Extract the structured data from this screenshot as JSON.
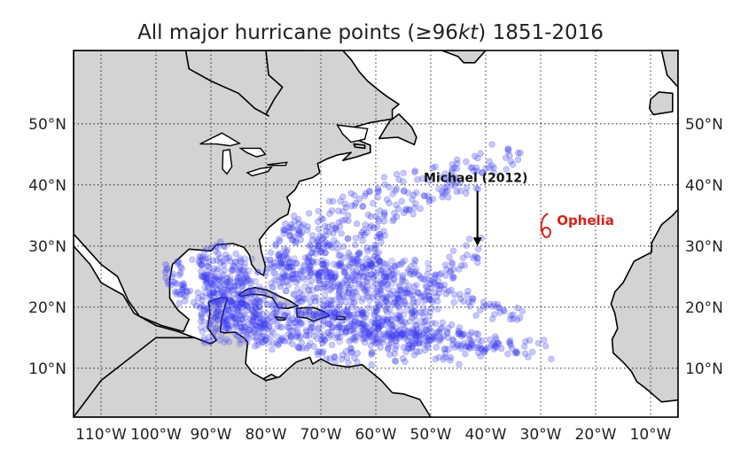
{
  "title": {
    "prefix": "All major hurricane points (",
    "symbol": "≥",
    "value": "96",
    "unit": "kt",
    "suffix": ") 1851-2016"
  },
  "map": {
    "extent": {
      "lon": [
        -115,
        -5
      ],
      "lat": [
        2,
        62
      ]
    },
    "land_color": "#d3d3d3",
    "ocean_color": "#ffffff",
    "coastline_color": "#000000",
    "point_color": "#3a3af0",
    "grid": "dotted",
    "lon_ticks": [
      {
        "lon": -110,
        "label": "110°W"
      },
      {
        "lon": -100,
        "label": "100°W"
      },
      {
        "lon": -90,
        "label": "90°W"
      },
      {
        "lon": -80,
        "label": "80°W"
      },
      {
        "lon": -70,
        "label": "70°W"
      },
      {
        "lon": -60,
        "label": "60°W"
      },
      {
        "lon": -50,
        "label": "50°W"
      },
      {
        "lon": -40,
        "label": "40°W"
      },
      {
        "lon": -30,
        "label": "30°W"
      },
      {
        "lon": -20,
        "label": "20°W"
      },
      {
        "lon": -10,
        "label": "10°W"
      }
    ],
    "lat_ticks": [
      {
        "lat": 10,
        "label": "10°N"
      },
      {
        "lat": 20,
        "label": "20°N"
      },
      {
        "lat": 30,
        "label": "30°N"
      },
      {
        "lat": 40,
        "label": "40°N"
      },
      {
        "lat": 50,
        "label": "50°N"
      }
    ]
  },
  "annotations": {
    "michael": {
      "label": "Michael (2012)",
      "lon": -41.5,
      "lat": 30
    },
    "ophelia": {
      "label": "Ophelia",
      "lon": -29,
      "lat": 33.3,
      "color": "#d4241c"
    }
  },
  "chart_data": {
    "type": "scatter",
    "title": "All major hurricane points (≥96kt) 1851-2016",
    "xlabel": "",
    "ylabel": "",
    "xlim": [
      -115,
      -5
    ],
    "ylim": [
      2,
      62
    ],
    "grid": true,
    "description_of_density": "dense along Caribbean and Gulf, fanning northeast to ~50°W and east to ~30°W",
    "tracks": [
      {
        "points": [
          [
            -52,
            14
          ],
          [
            -55,
            15
          ],
          [
            -58,
            16
          ],
          [
            -61,
            17
          ],
          [
            -64,
            18
          ],
          [
            -67,
            19
          ],
          [
            -70,
            20
          ],
          [
            -73,
            22
          ],
          [
            -75,
            24
          ],
          [
            -77,
            26
          ],
          [
            -78,
            28
          ],
          [
            -77,
            30
          ],
          [
            -75,
            32
          ],
          [
            -72,
            34
          ],
          [
            -68,
            36
          ],
          [
            -63,
            38
          ],
          [
            -58,
            40
          ],
          [
            -52,
            42
          ]
        ]
      },
      {
        "points": [
          [
            -45,
            12
          ],
          [
            -49,
            13
          ],
          [
            -53,
            14
          ],
          [
            -57,
            15
          ],
          [
            -61,
            16
          ],
          [
            -65,
            17
          ],
          [
            -69,
            18
          ],
          [
            -73,
            18.5
          ],
          [
            -77,
            19
          ],
          [
            -81,
            20
          ],
          [
            -84,
            21
          ],
          [
            -87,
            22
          ],
          [
            -89,
            24
          ],
          [
            -90,
            26
          ],
          [
            -90,
            28
          ],
          [
            -89,
            30
          ]
        ]
      },
      {
        "points": [
          [
            -30,
            13
          ],
          [
            -34,
            13.5
          ],
          [
            -38,
            14
          ],
          [
            -42,
            14.5
          ],
          [
            -46,
            15
          ],
          [
            -50,
            15.5
          ],
          [
            -54,
            16
          ],
          [
            -58,
            16.5
          ],
          [
            -62,
            17
          ],
          [
            -66,
            17.5
          ],
          [
            -70,
            18
          ]
        ]
      },
      {
        "points": [
          [
            -40,
            14
          ],
          [
            -44,
            15
          ],
          [
            -48,
            16
          ],
          [
            -52,
            17.5
          ],
          [
            -56,
            19
          ],
          [
            -59,
            21
          ],
          [
            -62,
            23
          ],
          [
            -64,
            25
          ],
          [
            -65,
            27
          ],
          [
            -65,
            30
          ],
          [
            -63,
            33
          ],
          [
            -60,
            36
          ],
          [
            -55,
            39
          ],
          [
            -50,
            42
          ],
          [
            -44,
            44
          ],
          [
            -38,
            46
          ]
        ]
      },
      {
        "points": [
          [
            -55,
            12
          ],
          [
            -59,
            13
          ],
          [
            -63,
            14
          ],
          [
            -67,
            15
          ],
          [
            -71,
            16
          ],
          [
            -75,
            17
          ],
          [
            -79,
            18
          ],
          [
            -83,
            19
          ],
          [
            -86,
            20
          ],
          [
            -89,
            21
          ],
          [
            -92,
            22
          ],
          [
            -95,
            23
          ],
          [
            -97,
            25
          ]
        ]
      },
      {
        "points": [
          [
            -62,
            11
          ],
          [
            -66,
            12
          ],
          [
            -70,
            13
          ],
          [
            -74,
            14
          ],
          [
            -78,
            15
          ],
          [
            -82,
            16
          ],
          [
            -85,
            17
          ],
          [
            -88,
            18
          ],
          [
            -90,
            19
          ],
          [
            -92,
            20
          ]
        ]
      },
      {
        "points": [
          [
            -36,
            13
          ],
          [
            -40,
            13.5
          ],
          [
            -44,
            14
          ],
          [
            -48,
            14.5
          ],
          [
            -52,
            15
          ],
          [
            -56,
            16
          ],
          [
            -60,
            17
          ],
          [
            -63,
            19
          ],
          [
            -66,
            21
          ],
          [
            -68,
            23
          ],
          [
            -70,
            25
          ],
          [
            -71,
            27
          ],
          [
            -71,
            29
          ],
          [
            -70,
            31
          ],
          [
            -68,
            33
          ],
          [
            -65,
            35
          ],
          [
            -61,
            37
          ]
        ]
      },
      {
        "points": [
          [
            -50,
            20
          ],
          [
            -53,
            21
          ],
          [
            -56,
            22
          ],
          [
            -58,
            24
          ],
          [
            -60,
            26
          ],
          [
            -61,
            28
          ],
          [
            -61,
            30
          ],
          [
            -60,
            32
          ],
          [
            -58,
            34
          ],
          [
            -55,
            36
          ],
          [
            -51,
            38
          ],
          [
            -47,
            40
          ],
          [
            -43,
            42
          ]
        ]
      },
      {
        "points": [
          [
            -42,
            30
          ],
          [
            -44,
            28
          ],
          [
            -46,
            26
          ],
          [
            -48,
            25
          ],
          [
            -50,
            24
          ]
        ]
      },
      {
        "points": [
          [
            -86,
            17
          ],
          [
            -87,
            19
          ],
          [
            -88,
            21
          ],
          [
            -89,
            23
          ],
          [
            -90,
            25
          ],
          [
            -91,
            27
          ],
          [
            -92,
            29
          ]
        ]
      },
      {
        "points": [
          [
            -80,
            14
          ],
          [
            -81,
            16
          ],
          [
            -82,
            18
          ],
          [
            -83,
            20
          ],
          [
            -84,
            22
          ],
          [
            -85,
            24
          ],
          [
            -86,
            26
          ],
          [
            -87,
            28
          ],
          [
            -87,
            30
          ]
        ]
      },
      {
        "points": [
          [
            -34,
            18
          ],
          [
            -37,
            19
          ],
          [
            -40,
            20
          ],
          [
            -43,
            21
          ],
          [
            -46,
            22
          ],
          [
            -49,
            23
          ],
          [
            -52,
            24
          ],
          [
            -55,
            25
          ],
          [
            -58,
            26
          ],
          [
            -61,
            27
          ],
          [
            -64,
            28
          ],
          [
            -67,
            29
          ],
          [
            -70,
            30
          ],
          [
            -73,
            31
          ],
          [
            -75,
            33
          ],
          [
            -76,
            35
          ]
        ]
      },
      {
        "points": [
          [
            -95,
            22
          ],
          [
            -96,
            24
          ],
          [
            -97,
            26
          ],
          [
            -97,
            28
          ]
        ]
      },
      {
        "points": [
          [
            -66,
            24
          ],
          [
            -69,
            25
          ],
          [
            -72,
            26
          ],
          [
            -75,
            26
          ],
          [
            -78,
            26
          ],
          [
            -80,
            25.5
          ]
        ]
      },
      {
        "points": [
          [
            -48,
            38
          ],
          [
            -44,
            40
          ],
          [
            -40,
            42
          ],
          [
            -36,
            44
          ],
          [
            -33,
            46
          ]
        ]
      }
    ]
  }
}
